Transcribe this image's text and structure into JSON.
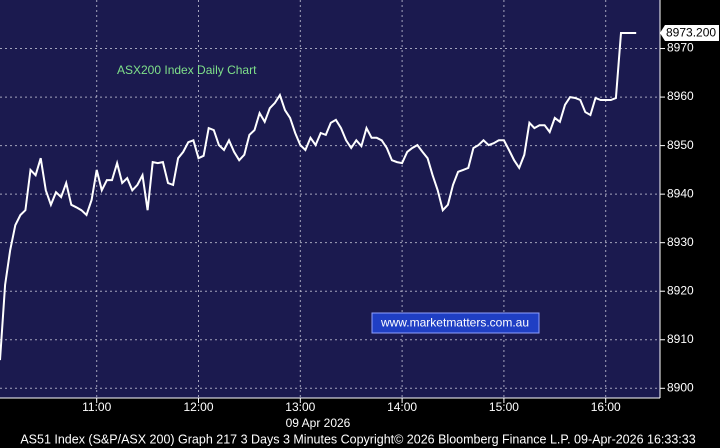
{
  "chart_data": {
    "type": "line",
    "title": "ASX200 Index Daily Chart",
    "watermark": "www.marketmatters.com.au",
    "x_axis_label": "09 Apr 2026",
    "footer": "AS51 Index (S&P/ASX 200) Graph 217 3 Days 3 Minutes Copyright© 2026 Bloomberg Finance L.P. 09-Apr-2026 16:33:33",
    "x": [
      "10:03",
      "10:06",
      "10:09",
      "10:12",
      "10:15",
      "10:18",
      "10:21",
      "10:24",
      "10:27",
      "10:30",
      "10:33",
      "10:36",
      "10:39",
      "10:42",
      "10:45",
      "10:48",
      "10:51",
      "10:54",
      "10:57",
      "11:00",
      "11:03",
      "11:06",
      "11:09",
      "11:12",
      "11:15",
      "11:18",
      "11:21",
      "11:24",
      "11:27",
      "11:30",
      "11:33",
      "11:36",
      "11:39",
      "11:42",
      "11:45",
      "11:48",
      "11:51",
      "11:54",
      "11:57",
      "12:00",
      "12:03",
      "12:06",
      "12:09",
      "12:12",
      "12:15",
      "12:18",
      "12:21",
      "12:24",
      "12:27",
      "12:30",
      "12:33",
      "12:36",
      "12:39",
      "12:42",
      "12:45",
      "12:48",
      "12:51",
      "12:54",
      "12:57",
      "13:00",
      "13:03",
      "13:06",
      "13:09",
      "13:12",
      "13:15",
      "13:18",
      "13:21",
      "13:24",
      "13:27",
      "13:30",
      "13:33",
      "13:36",
      "13:39",
      "13:42",
      "13:45",
      "13:48",
      "13:51",
      "13:54",
      "13:57",
      "14:00",
      "14:03",
      "14:06",
      "14:09",
      "14:12",
      "14:15",
      "14:18",
      "14:21",
      "14:24",
      "14:27",
      "14:30",
      "14:33",
      "14:36",
      "14:39",
      "14:42",
      "14:45",
      "14:48",
      "14:51",
      "14:54",
      "14:57",
      "15:00",
      "15:03",
      "15:06",
      "15:09",
      "15:12",
      "15:15",
      "15:18",
      "15:21",
      "15:24",
      "15:27",
      "15:30",
      "15:33",
      "15:36",
      "15:39",
      "15:42",
      "15:45",
      "15:48",
      "15:51",
      "15:54",
      "15:57",
      "16:00",
      "16:03",
      "16:06",
      "16:09",
      "16:12",
      "16:15",
      "16:18"
    ],
    "values": [
      8905.8,
      8921.3,
      8928.5,
      8933.6,
      8935.7,
      8936.7,
      8945.0,
      8943.9,
      8947.4,
      8940.8,
      8937.8,
      8940.4,
      8939.4,
      8942.3,
      8937.8,
      8937.3,
      8936.7,
      8935.7,
      8938.8,
      8945.0,
      8940.8,
      8942.9,
      8942.9,
      8946.4,
      8942.3,
      8943.3,
      8940.8,
      8941.9,
      8943.9,
      8936.7,
      8946.6,
      8946.4,
      8946.6,
      8942.3,
      8941.9,
      8947.4,
      8948.7,
      8950.7,
      8951.1,
      8947.4,
      8947.9,
      8953.6,
      8953.2,
      8950.1,
      8949.1,
      8951.1,
      8948.7,
      8947.0,
      8948.1,
      8952.2,
      8953.2,
      8956.7,
      8954.9,
      8957.7,
      8958.8,
      8960.4,
      8957.3,
      8955.7,
      8952.6,
      8950.1,
      8949.1,
      8951.6,
      8950.1,
      8952.6,
      8952.2,
      8954.7,
      8955.3,
      8953.6,
      8951.1,
      8949.5,
      8951.1,
      8949.9,
      8953.6,
      8951.6,
      8951.6,
      8951.1,
      8949.5,
      8947.0,
      8946.6,
      8946.4,
      8948.7,
      8949.5,
      8950.1,
      8948.7,
      8947.4,
      8943.9,
      8940.8,
      8936.7,
      8937.8,
      8941.9,
      8944.6,
      8945.0,
      8945.4,
      8949.5,
      8950.1,
      8951.1,
      8950.1,
      8950.5,
      8951.1,
      8951.1,
      8949.1,
      8947.0,
      8945.4,
      8948.1,
      8954.7,
      8953.6,
      8954.2,
      8954.2,
      8952.8,
      8955.7,
      8954.9,
      8958.4,
      8960.0,
      8959.8,
      8959.4,
      8956.9,
      8956.3,
      8959.8,
      8959.4,
      8959.4,
      8959.4,
      8959.8,
      8973.2,
      8973.2,
      8973.2,
      8973.2
    ],
    "color": "#ffffff",
    "last_price": {
      "value": 8973.2,
      "label": "8973.200"
    },
    "xlim": [
      "10:03",
      "16:32"
    ],
    "xticks": [
      "11:00",
      "12:00",
      "13:00",
      "14:00",
      "15:00",
      "16:00"
    ],
    "ylim": [
      8898,
      8980
    ],
    "yticks": [
      8900,
      8910,
      8920,
      8930,
      8940,
      8950,
      8960,
      8970
    ],
    "grid": true
  }
}
